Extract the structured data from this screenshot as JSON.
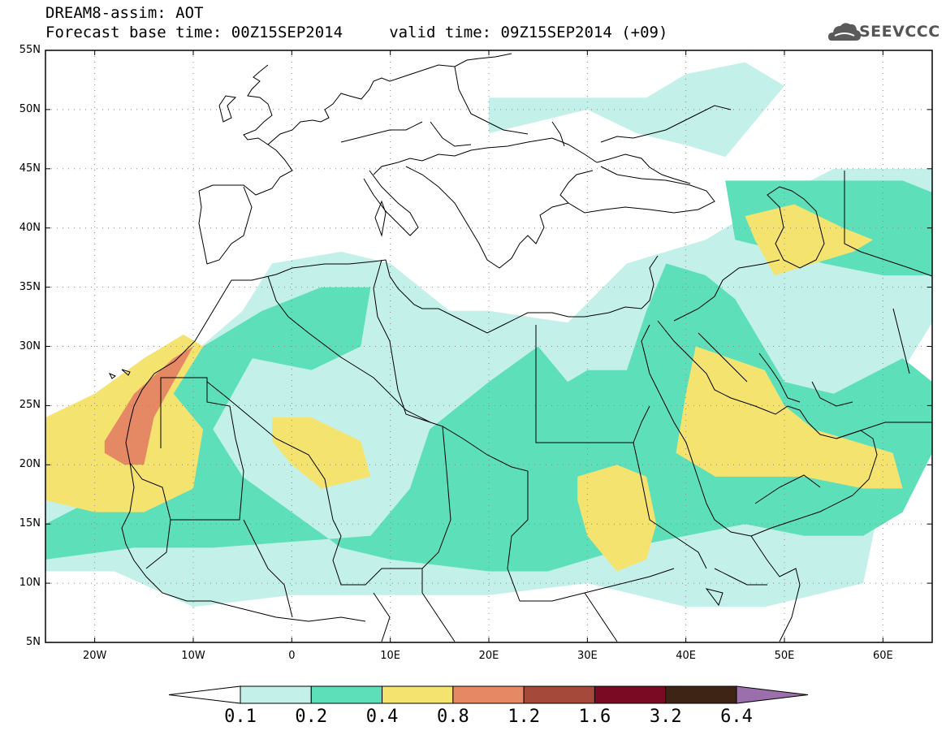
{
  "header": {
    "title_line1": "DREAM8-assim: AOT",
    "title_line2": "Forecast base time: 00Z15SEP2014     valid time: 09Z15SEP2014 (+09)",
    "logo_text": "SEEVCCC",
    "logo_icon": "cloud-icon"
  },
  "map": {
    "projection": "lat-lon",
    "lon_range": [
      -25,
      65
    ],
    "lat_range": [
      5,
      55
    ],
    "grid": "dotted",
    "lat_ticks": [
      {
        "value": 55,
        "label": "55N"
      },
      {
        "value": 50,
        "label": "50N"
      },
      {
        "value": 45,
        "label": "45N"
      },
      {
        "value": 40,
        "label": "40N"
      },
      {
        "value": 35,
        "label": "35N"
      },
      {
        "value": 30,
        "label": "30N"
      },
      {
        "value": 25,
        "label": "25N"
      },
      {
        "value": 20,
        "label": "20N"
      },
      {
        "value": 15,
        "label": "15N"
      },
      {
        "value": 10,
        "label": "10N"
      },
      {
        "value": 5,
        "label": "5N"
      }
    ],
    "lon_ticks": [
      {
        "value": -20,
        "label": "20W"
      },
      {
        "value": -10,
        "label": "10W"
      },
      {
        "value": 0,
        "label": "0"
      },
      {
        "value": 10,
        "label": "10E"
      },
      {
        "value": 20,
        "label": "20E"
      },
      {
        "value": 30,
        "label": "30E"
      },
      {
        "value": 40,
        "label": "40E"
      },
      {
        "value": 50,
        "label": "50E"
      },
      {
        "value": 60,
        "label": "60E"
      }
    ]
  },
  "colorbar": {
    "levels": [
      "0.1",
      "0.2",
      "0.4",
      "0.8",
      "1.2",
      "1.6",
      "3.2",
      "6.4"
    ],
    "colors": [
      "#ffffff",
      "#c4f0ea",
      "#5ddfba",
      "#f5e370",
      "#e58964",
      "#a5493a",
      "#7a0a24",
      "#3e2414",
      "#9b6fab"
    ]
  },
  "fields": {
    "fill_colors": {
      "aot_0_1": "#c4f0ea",
      "aot_0_2": "#5ddfba",
      "aot_0_4": "#f5e370",
      "aot_0_8": "#e58964"
    },
    "layers": [
      {
        "level": "0.1",
        "regions": [
          [
            [
              -25,
              19
            ],
            [
              -20,
              24
            ],
            [
              -12,
              28
            ],
            [
              -5,
              33
            ],
            [
              -2,
              37
            ],
            [
              5,
              38
            ],
            [
              10,
              37
            ],
            [
              16,
              33
            ],
            [
              20,
              33
            ],
            [
              28,
              32
            ],
            [
              34,
              37
            ],
            [
              42,
              39
            ],
            [
              48,
              42
            ],
            [
              55,
              45
            ],
            [
              65,
              45
            ],
            [
              65,
              32
            ],
            [
              62,
              28
            ],
            [
              60,
              18
            ],
            [
              58,
              10
            ],
            [
              48,
              8
            ],
            [
              40,
              8
            ],
            [
              30,
              10
            ],
            [
              20,
              9
            ],
            [
              10,
              9
            ],
            [
              0,
              9
            ],
            [
              -10,
              8
            ],
            [
              -18,
              11
            ],
            [
              -25,
              11
            ]
          ],
          [
            [
              36,
              51
            ],
            [
              40,
              53
            ],
            [
              46,
              54
            ],
            [
              50,
              52
            ],
            [
              46,
              48
            ],
            [
              44,
              46
            ],
            [
              40,
              47
            ],
            [
              35,
              48
            ],
            [
              30,
              50
            ],
            [
              25,
              49
            ],
            [
              20,
              48
            ],
            [
              20,
              51
            ],
            [
              27,
              51
            ]
          ],
          [
            [
              46,
              36
            ],
            [
              50,
              34
            ],
            [
              55,
              33
            ],
            [
              60,
              33
            ],
            [
              65,
              33
            ],
            [
              65,
              40
            ],
            [
              58,
              41
            ],
            [
              50,
              40
            ]
          ]
        ]
      },
      {
        "level": "0.2",
        "regions": [
          [
            [
              -25,
              15
            ],
            [
              -18,
              18
            ],
            [
              -14,
              24
            ],
            [
              -9,
              30
            ],
            [
              -3,
              33
            ],
            [
              3,
              35
            ],
            [
              8,
              35
            ],
            [
              7,
              30
            ],
            [
              2,
              28
            ],
            [
              -4,
              29
            ],
            [
              -8,
              23
            ],
            [
              -5,
              19
            ],
            [
              0,
              16
            ],
            [
              5,
              13
            ],
            [
              10,
              12
            ],
            [
              20,
              11
            ],
            [
              26,
              11
            ],
            [
              34,
              13
            ],
            [
              40,
              14
            ],
            [
              46,
              15
            ],
            [
              52,
              14
            ],
            [
              58,
              14
            ],
            [
              62,
              16
            ],
            [
              65,
              21
            ],
            [
              65,
              27
            ],
            [
              62,
              29
            ],
            [
              55,
              26
            ],
            [
              50,
              27
            ],
            [
              45,
              34
            ],
            [
              42,
              36
            ],
            [
              38,
              37
            ],
            [
              36,
              33
            ],
            [
              34,
              28
            ],
            [
              30,
              28
            ],
            [
              28,
              27
            ],
            [
              25,
              30
            ],
            [
              20,
              27
            ],
            [
              14,
              23
            ],
            [
              12,
              18
            ],
            [
              8,
              14
            ],
            [
              -8,
              13
            ],
            [
              -16,
              13
            ],
            [
              -25,
              12
            ]
          ],
          [
            [
              44,
              44
            ],
            [
              50,
              44
            ],
            [
              56,
              44
            ],
            [
              62,
              44
            ],
            [
              65,
              43
            ],
            [
              65,
              36
            ],
            [
              60,
              36
            ],
            [
              54,
              37
            ],
            [
              50,
              38
            ],
            [
              45,
              39
            ]
          ]
        ]
      },
      {
        "level": "0.4",
        "regions": [
          [
            [
              -25,
              24
            ],
            [
              -20,
              26
            ],
            [
              -15,
              29
            ],
            [
              -11,
              31
            ],
            [
              -9,
              30
            ],
            [
              -12,
              26
            ],
            [
              -9,
              23
            ],
            [
              -10,
              18
            ],
            [
              -15,
              16
            ],
            [
              -20,
              16
            ],
            [
              -25,
              17
            ]
          ],
          [
            [
              -2,
              24
            ],
            [
              2,
              24
            ],
            [
              7,
              22
            ],
            [
              8,
              19
            ],
            [
              3,
              18
            ],
            [
              0,
              20
            ],
            [
              -2,
              22
            ]
          ],
          [
            [
              41,
              30
            ],
            [
              48,
              28
            ],
            [
              50,
              25
            ],
            [
              53,
              23
            ],
            [
              57,
              22
            ],
            [
              61,
              21
            ],
            [
              62,
              18
            ],
            [
              58,
              18
            ],
            [
              52,
              19
            ],
            [
              47,
              19
            ],
            [
              43,
              19
            ],
            [
              39,
              21
            ],
            [
              40,
              26
            ]
          ],
          [
            [
              29,
              19
            ],
            [
              33,
              20
            ],
            [
              36,
              19
            ],
            [
              37,
              15
            ],
            [
              36,
              12
            ],
            [
              33,
              11
            ],
            [
              30,
              14
            ],
            [
              29,
              17
            ]
          ],
          [
            [
              46,
              41
            ],
            [
              51,
              42
            ],
            [
              56,
              40
            ],
            [
              59,
              39
            ],
            [
              57,
              38
            ],
            [
              53,
              37
            ],
            [
              49,
              36
            ],
            [
              47,
              39
            ]
          ]
        ]
      },
      {
        "level": "0.8",
        "regions": [
          [
            [
              -19,
              22
            ],
            [
              -16,
              26
            ],
            [
              -12,
              29
            ],
            [
              -10,
              30
            ],
            [
              -12,
              27
            ],
            [
              -14,
              24
            ],
            [
              -15,
              20
            ],
            [
              -17,
              20
            ],
            [
              -19,
              21
            ]
          ]
        ]
      }
    ]
  }
}
